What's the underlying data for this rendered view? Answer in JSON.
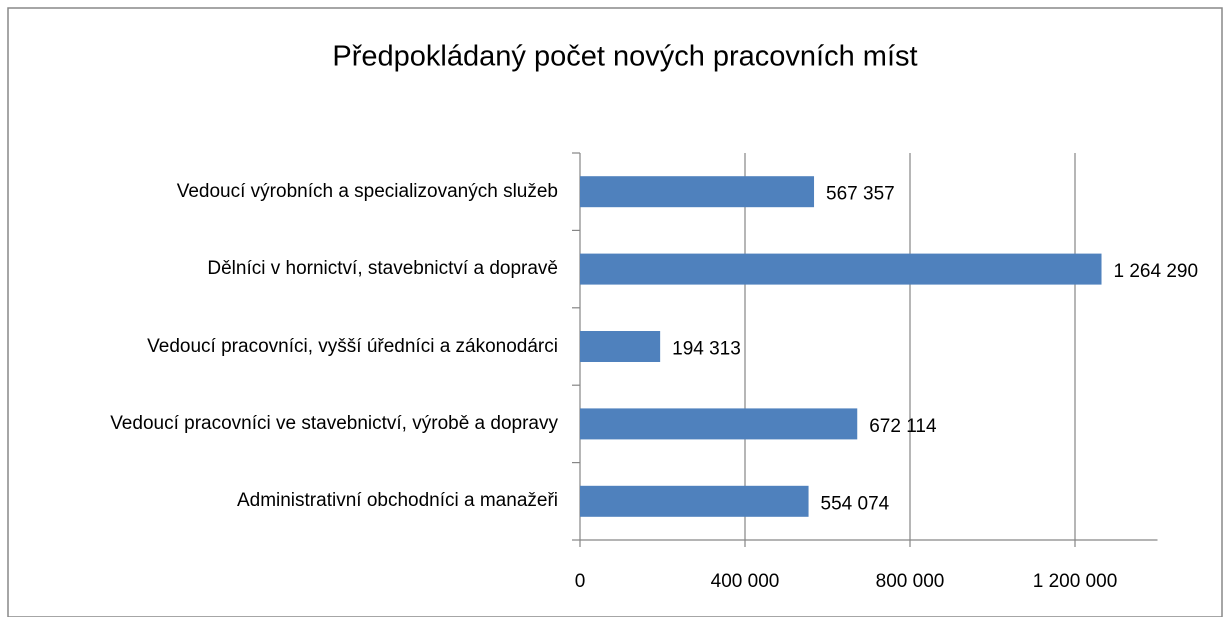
{
  "chart_data": {
    "type": "bar",
    "orientation": "horizontal",
    "title": "Předpokládaný počet nových pracovních míst",
    "categories": [
      "Vedoucí výrobních a specializovaných služeb",
      "Dělníci v hornictví, stavebnictví a dopravě",
      "Vedoucí pracovníci, vyšší úředníci a zákonodárci",
      "Vedoucí pracovníci ve stavebnictví, výrobě a dopravy",
      "Administrativní obchodníci a manažeři"
    ],
    "values": [
      567357,
      1264290,
      194313,
      672114,
      554074
    ],
    "value_labels": [
      "567 357",
      "1 264 290",
      "194 313",
      "672 114",
      "554 074"
    ],
    "color": "#4f81bd",
    "xlim": [
      0,
      1400000
    ],
    "xticks": [
      0,
      {
        "value": 400000,
        "label": "400 000"
      },
      {
        "value": 800000,
        "label": "800 000"
      },
      {
        "value": 1200000,
        "label": "1 200 000"
      }
    ],
    "grid": true
  }
}
